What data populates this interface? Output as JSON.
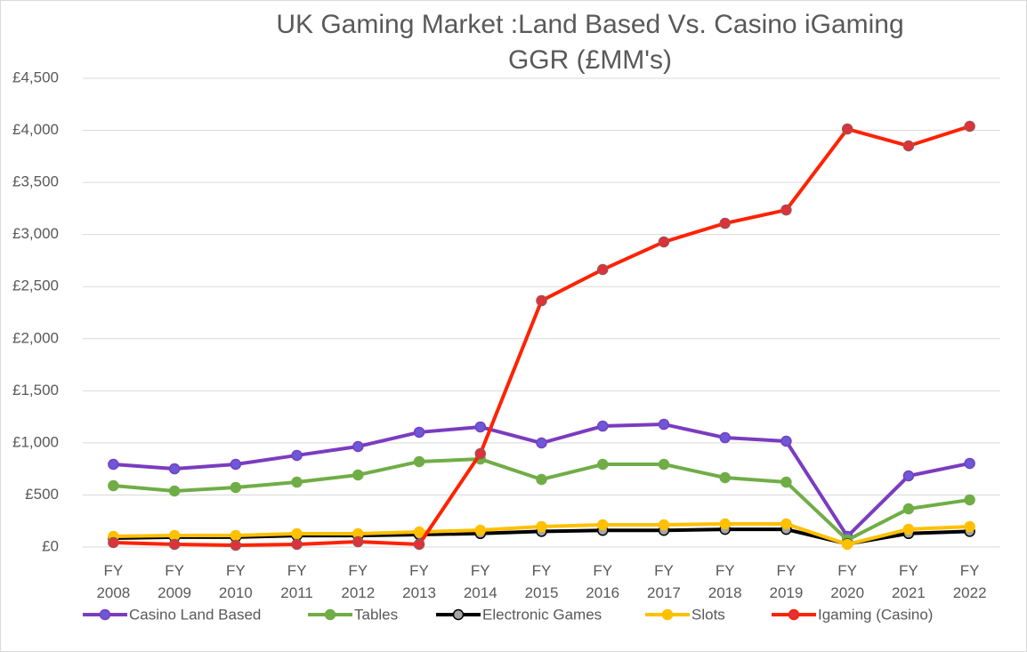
{
  "chart_data": {
    "type": "line",
    "title": "UK Gaming Market :Land Based Vs. Casino iGaming GGR (£MM's)",
    "categories": [
      "FY 2008",
      "FY 2009",
      "FY 2010",
      "FY 2011",
      "FY 2012",
      "FY 2013",
      "FY 2014",
      "FY 2015",
      "FY 2016",
      "FY 2017",
      "FY 2018",
      "FY 2019",
      "FY 2020",
      "FY 2021",
      "FY 2022"
    ],
    "series": [
      {
        "name": "Casino Land Based",
        "color": "#7a3cc0",
        "marker_color": "#6a5ad8",
        "values": [
          794,
          751,
          794,
          880,
          965,
          1102,
          1153,
          999,
          1161,
          1178,
          1050,
          1016,
          102,
          683,
          803
        ]
      },
      {
        "name": "Tables",
        "color": "#70ad47",
        "marker_color": "#70ad47",
        "values": [
          589,
          538,
          572,
          623,
          692,
          820,
          845,
          649,
          794,
          794,
          666,
          623,
          68,
          367,
          453
        ]
      },
      {
        "name": "Electronic Games",
        "color": "#000000",
        "marker_color": "#a5a5a5",
        "values": [
          85,
          95,
          95,
          110,
          110,
          120,
          130,
          150,
          160,
          160,
          170,
          170,
          30,
          130,
          150
        ]
      },
      {
        "name": "Slots",
        "color": "#ffc000",
        "marker_color": "#ffc000",
        "values": [
          102,
          111,
          111,
          128,
          128,
          145,
          162,
          196,
          213,
          213,
          222,
          222,
          26,
          171,
          196
        ]
      },
      {
        "name": "Igaming (Casino)",
        "color": "#ff2200",
        "marker_color": "#e0303a",
        "values": [
          43,
          26,
          17,
          26,
          51,
          26,
          897,
          2365,
          2664,
          2929,
          3108,
          3236,
          4013,
          3851,
          4039
        ]
      }
    ],
    "ylim": [
      0,
      4500
    ],
    "yticks": [
      {
        "value": 0,
        "label": "£0"
      },
      {
        "value": 500,
        "label": "£500"
      },
      {
        "value": 1000,
        "label": "£1,000"
      },
      {
        "value": 1500,
        "label": "£1,500"
      },
      {
        "value": 2000,
        "label": "£2,000"
      },
      {
        "value": 2500,
        "label": "£2,500"
      },
      {
        "value": 3000,
        "label": "£3,000"
      },
      {
        "value": 3500,
        "label": "£3,500"
      },
      {
        "value": 4000,
        "label": "£4,000"
      },
      {
        "value": 4500,
        "label": "£4,500"
      }
    ],
    "grid": true
  }
}
